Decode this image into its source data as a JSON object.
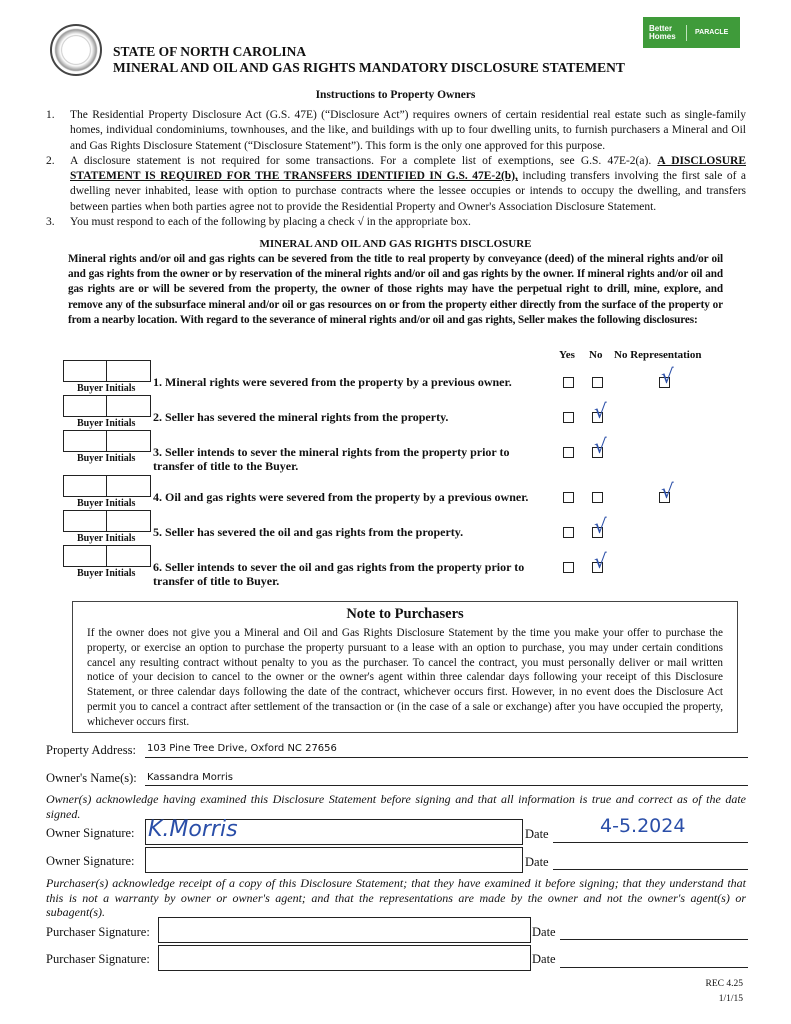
{
  "header": {
    "state": "STATE OF NORTH CAROLINA",
    "form_title": "MINERAL AND OIL AND GAS RIGHTS MANDATORY DISCLOSURE STATEMENT",
    "logo_brand": "Better Homes",
    "logo_office": "PARACLE",
    "seal": "North Carolina Real Estate Commission"
  },
  "instructions": {
    "heading": "Instructions to Property Owners",
    "items": [
      {
        "num": "1.",
        "text": "The Residential Property Disclosure Act (G.S. 47E) (“Disclosure Act”) requires owners of certain residential real estate such as single-family homes, individual condominiums, townhouses, and the like, and buildings with up to four dwelling units, to furnish purchasers a Mineral and Oil and Gas Rights Disclosure Statement (“Disclosure Statement”). This form is the only one approved for this purpose."
      },
      {
        "num": "2.",
        "pre": "A disclosure statement is not required for some transactions. For a complete list of exemptions, see G.S. 47E-2(a). ",
        "bold": "A DISCLOSURE STATEMENT IS REQUIRED FOR THE TRANSFERS IDENTIFIED IN G.S. 47E-2(b),",
        "post": " including transfers involving the first sale of a dwelling never inhabited, lease with option to purchase contracts where the lessee occupies or intends to occupy the dwelling, and transfers between parties when both parties agree not to provide the Residential Property and Owner's Association Disclosure Statement."
      },
      {
        "num": "3.",
        "text": "You must respond to each of the following by placing a check √ in the appropriate box."
      }
    ]
  },
  "disclosure": {
    "heading": "MINERAL AND OIL AND GAS RIGHTS DISCLOSURE",
    "paragraph": "Mineral rights and/or oil and gas rights can be severed from the title to real property by conveyance (deed) of the mineral rights and/or oil and gas rights from the owner or by reservation of the mineral rights and/or oil and gas rights by the owner. If mineral rights and/or oil and gas rights are or will be severed from the property, the owner of those rights may have the perpetual right to drill, mine, explore, and remove any of the subsurface mineral and/or oil or gas resources on or from the property either directly from the surface of the property or from a nearby location. With regard to the severance of mineral rights and/or oil and gas rights, Seller makes the following disclosures:",
    "col_yes": "Yes",
    "col_no": "No",
    "col_norep": "No Representation",
    "initials_label": "Buyer Initials",
    "check_mark": "√",
    "questions": [
      {
        "text": "1. Mineral rights were severed from the property by a previous owner.",
        "answer": "No Representation"
      },
      {
        "text": "2. Seller has severed the mineral rights from the property.",
        "answer": "No"
      },
      {
        "text": "3. Seller intends to sever the mineral rights from the property prior to transfer of title to the Buyer.",
        "answer": "No"
      },
      {
        "text": "4. Oil and gas rights were severed from the property by a previous owner.",
        "answer": "No Representation"
      },
      {
        "text": "5. Seller has severed the oil and gas rights from the property.",
        "answer": "No"
      },
      {
        "text": "6. Seller intends to sever the oil and gas rights from the property prior to transfer of title to Buyer.",
        "answer": "No"
      }
    ]
  },
  "note": {
    "heading": "Note to Purchasers",
    "text": "If the owner does not give you a Mineral and Oil and Gas Rights Disclosure Statement by the time you make your offer to purchase the property, or exercise an option to purchase the property pursuant to a lease with an option to purchase, you may under certain conditions cancel any resulting contract without penalty to you as the purchaser. To cancel the contract, you must personally deliver or mail written notice of your decision to cancel to the owner or the owner's agent within three calendar days following your receipt of this Disclosure Statement, or three calendar days following the date of the contract, whichever occurs first. However, in no event does the Disclosure Act permit you to cancel a contract after settlement of the transaction or (in the case of a sale or exchange) after you have occupied the property, whichever occurs first."
  },
  "form": {
    "address_label": "Property Address:",
    "address_value": "103 Pine Tree Drive, Oxford NC 27656",
    "owner_name_label": "Owner's Name(s):",
    "owner_name_value": "Kassandra Morris",
    "owner_ack": "Owner(s) acknowledge having examined this Disclosure Statement before signing and that all information is true and correct as of the date signed.",
    "owner_sig_label": "Owner Signature:",
    "date_label": "Date",
    "owner_sig_1": "K.Morris",
    "owner_date_1": "4-5.2024",
    "purchaser_ack": "Purchaser(s) acknowledge receipt of a copy of this Disclosure Statement; that they have examined it before signing; that they understand that this is not a warranty by owner or owner's agent; and that the representations are made by the owner and not the owner's agent(s) or subagent(s).",
    "purchaser_sig_label": "Purchaser Signature:"
  },
  "footer": {
    "form_no": "REC 4.25",
    "revision": "1/1/15"
  },
  "colors": {
    "ink": "#2a4ea8",
    "logo_green": "#3f9b3a"
  }
}
